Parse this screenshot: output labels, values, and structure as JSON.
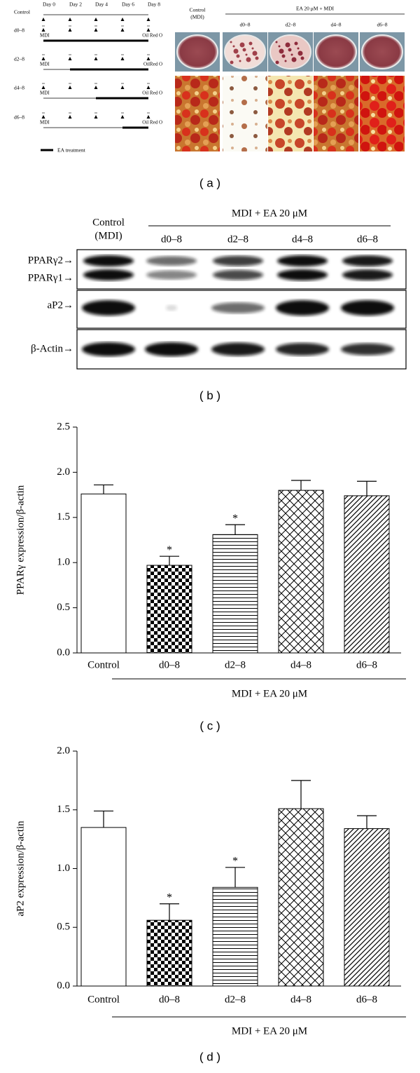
{
  "figure": {
    "panel_labels": [
      "( a )",
      "( b )",
      "( c )",
      "( d )"
    ],
    "panel_a": {
      "schedule": {
        "rows": [
          "Control",
          "d0–8",
          "d2–8",
          "d4–8",
          "d6–8"
        ],
        "days": [
          "Day 0",
          "Day 2",
          "Day 4",
          "Day 6",
          "Day 8"
        ],
        "start_label": "MDI",
        "end_labels": [
          "Oil Red O",
          "OilRed O",
          "Oil Red O",
          "Oil Red O"
        ],
        "legend": "EA treatment"
      },
      "photos": {
        "control_label": "Control",
        "control_sub": "(MDI)",
        "group_label": "EA 20 μM + MDI",
        "columns": [
          "d0–8",
          "d2–8",
          "d4–8",
          "d6–8"
        ]
      }
    },
    "panel_b": {
      "control_label": "Control",
      "control_sub": "(MDI)",
      "group_label": "MDI + EA 20 μM",
      "columns": [
        "d0–8",
        "d2–8",
        "d4–8",
        "d6–8"
      ],
      "rows": [
        "PPARγ2→",
        "PPARγ1→",
        "aP2→",
        "β-Actin→"
      ]
    }
  },
  "chart_data": [
    {
      "type": "bar",
      "y_label": "PPARγ expression/β-actin",
      "categories": [
        "Control",
        "d0–8",
        "d2–8",
        "d4–8",
        "d6–8"
      ],
      "values": [
        1.76,
        0.97,
        1.31,
        1.8,
        1.74
      ],
      "errors": [
        0.1,
        0.1,
        0.11,
        0.11,
        0.16
      ],
      "value_annotations": [
        null,
        "*",
        "*",
        null,
        null
      ],
      "patterns": [
        "none",
        "checker",
        "horizontal",
        "crosshatch",
        "diagonal"
      ],
      "color": "#ffffff",
      "group_label": "MDI + EA 20 μM",
      "ylim": [
        0,
        2.5
      ],
      "yticks": [
        {
          "value": 0,
          "label": "0.0"
        },
        {
          "value": 0.5,
          "label": "0.5"
        },
        {
          "value": 1,
          "label": "1.0"
        },
        {
          "value": 1.5,
          "label": "1.5"
        },
        {
          "value": 2,
          "label": "2.0"
        },
        {
          "value": 2.5,
          "label": "2.5"
        }
      ]
    },
    {
      "type": "bar",
      "y_label": "aP2 expression/β-actin",
      "categories": [
        "Control",
        "d0–8",
        "d2–8",
        "d4–8",
        "d6–8"
      ],
      "values": [
        1.35,
        0.56,
        0.84,
        1.51,
        1.34
      ],
      "errors": [
        0.14,
        0.14,
        0.17,
        0.24,
        0.11
      ],
      "value_annotations": [
        null,
        "*",
        "*",
        null,
        null
      ],
      "patterns": [
        "none",
        "checker",
        "horizontal",
        "crosshatch",
        "diagonal"
      ],
      "color": "#ffffff",
      "group_label": "MDI + EA 20 μM",
      "ylim": [
        0,
        2
      ],
      "yticks": [
        {
          "value": 0,
          "label": "0.0"
        },
        {
          "value": 0.5,
          "label": "0.5"
        },
        {
          "value": 1,
          "label": "1.0"
        },
        {
          "value": 1.5,
          "label": "1.5"
        },
        {
          "value": 2,
          "label": "2.0"
        }
      ]
    }
  ]
}
